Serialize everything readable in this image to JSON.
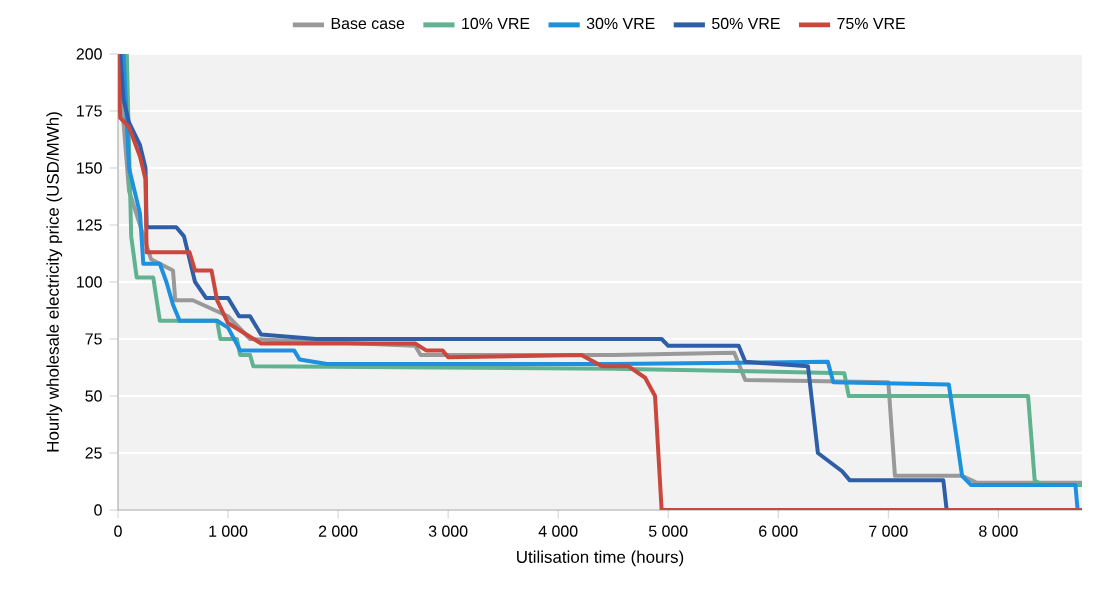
{
  "chart_data": {
    "type": "line",
    "xlabel": "Utilisation time (hours)",
    "ylabel": "Hourly wholesale electricity price (USD/MWh)",
    "xlim": [
      0,
      8760
    ],
    "ylim": [
      0,
      200
    ],
    "xticks": [
      {
        "value": 0,
        "label": "0"
      },
      {
        "value": 1000,
        "label": "1 000"
      },
      {
        "value": 2000,
        "label": "2 000"
      },
      {
        "value": 3000,
        "label": "3 000"
      },
      {
        "value": 4000,
        "label": "4 000"
      },
      {
        "value": 5000,
        "label": "5 000"
      },
      {
        "value": 6000,
        "label": "6 000"
      },
      {
        "value": 7000,
        "label": "7 000"
      },
      {
        "value": 8000,
        "label": "8 000"
      }
    ],
    "yticks": [
      0,
      25,
      50,
      75,
      100,
      125,
      150,
      175,
      200
    ],
    "grid": "y",
    "legend": "top",
    "marker": "none",
    "line_style": "solid",
    "series": [
      {
        "name": "Base case",
        "color": "#999999",
        "x": [
          0,
          100,
          200,
          300,
          500,
          520,
          680,
          1000,
          1200,
          2700,
          2750,
          4500,
          5600,
          5700,
          7000,
          7060,
          7670,
          7800,
          8760
        ],
        "values": [
          200,
          140,
          125,
          110,
          105,
          92,
          92,
          85,
          75,
          72,
          68,
          68,
          69,
          57,
          56,
          15,
          15,
          12,
          12
        ]
      },
      {
        "name": "10% VRE",
        "color": "#5fb391",
        "x": [
          80,
          120,
          170,
          320,
          380,
          900,
          930,
          1080,
          1110,
          1200,
          1230,
          4500,
          6600,
          6640,
          8270,
          8330,
          8400,
          8760
        ],
        "values": [
          200,
          120,
          102,
          102,
          83,
          83,
          75,
          75,
          68,
          68,
          63,
          62,
          60,
          50,
          50,
          13,
          11,
          11
        ]
      },
      {
        "name": "30% VRE",
        "color": "#1e90e0",
        "x": [
          50,
          100,
          200,
          230,
          380,
          440,
          500,
          560,
          900,
          1000,
          1110,
          1600,
          1650,
          1900,
          4500,
          6450,
          6500,
          7550,
          7670,
          7750,
          8700,
          8720
        ],
        "values": [
          200,
          150,
          130,
          108,
          108,
          100,
          90,
          83,
          83,
          80,
          70,
          70,
          66,
          64,
          64,
          65,
          56,
          55,
          15,
          11,
          11,
          0
        ]
      },
      {
        "name": "50% VRE",
        "color": "#2e5ea8",
        "x": [
          20,
          50,
          100,
          200,
          250,
          260,
          530,
          600,
          700,
          800,
          1000,
          1100,
          1200,
          1300,
          1800,
          4940,
          5000,
          5640,
          5700,
          6270,
          6360,
          6580,
          6650,
          7500,
          7530
        ],
        "values": [
          200,
          180,
          170,
          160,
          150,
          124,
          124,
          120,
          100,
          93,
          93,
          85,
          85,
          77,
          75,
          75,
          72,
          72,
          65,
          63,
          25,
          17,
          13,
          13,
          0
        ]
      },
      {
        "name": "75% VRE",
        "color": "#c9473d",
        "x": [
          0,
          20,
          100,
          200,
          250,
          260,
          650,
          700,
          850,
          900,
          1000,
          1200,
          1300,
          2700,
          2800,
          2950,
          3000,
          4210,
          4400,
          4640,
          4790,
          4880,
          4940,
          8760
        ],
        "values": [
          200,
          172,
          168,
          155,
          145,
          113,
          113,
          105,
          105,
          92,
          82,
          76,
          73,
          73,
          70,
          70,
          67,
          68,
          63,
          63,
          58,
          50,
          0,
          0
        ]
      }
    ]
  }
}
